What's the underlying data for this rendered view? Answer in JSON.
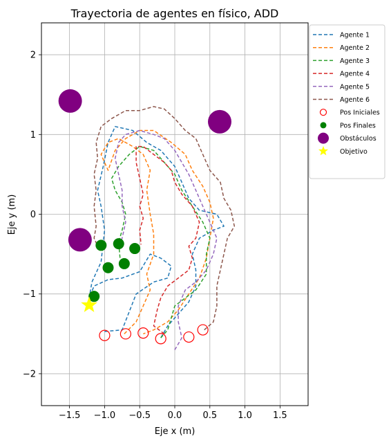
{
  "chart_data": {
    "type": "line",
    "title": "Trayectoria de agentes en físico, ADD",
    "xlabel": "Eje x (m)",
    "ylabel": "Eje y (m)",
    "xlim": [
      -1.9,
      1.9
    ],
    "ylim": [
      -2.4,
      2.4
    ],
    "xticks": [
      -1.5,
      -1.0,
      -0.5,
      0.0,
      0.5,
      1.0,
      1.5
    ],
    "xtick_labels": [
      "−1.5",
      "−1.0",
      "−0.5",
      "0.0",
      "0.5",
      "1.0",
      "1.5"
    ],
    "yticks": [
      -2,
      -1,
      0,
      1,
      2
    ],
    "ytick_labels": [
      "−2",
      "−1",
      "0",
      "1",
      "2"
    ],
    "grid": true,
    "legend_position": "outside-top-right",
    "series": [
      {
        "name": "Agente 1",
        "color": "#1f77b4",
        "style": "dashed",
        "points": [
          [
            -1.0,
            -1.47
          ],
          [
            -0.75,
            -1.45
          ],
          [
            -0.55,
            -1.0
          ],
          [
            -0.3,
            -0.85
          ],
          [
            -0.1,
            -0.8
          ],
          [
            -0.05,
            -0.65
          ],
          [
            -0.2,
            -0.55
          ],
          [
            -0.35,
            -0.5
          ],
          [
            -0.5,
            -0.72
          ],
          [
            -0.75,
            -0.8
          ],
          [
            -0.95,
            -0.82
          ],
          [
            -1.15,
            -0.9
          ],
          [
            -1.22,
            -1.05
          ],
          [
            -1.18,
            -0.85
          ],
          [
            -1.05,
            -0.6
          ],
          [
            -1.0,
            -0.2
          ],
          [
            -1.05,
            0.1
          ],
          [
            -1.1,
            0.3
          ],
          [
            -1.02,
            0.6
          ],
          [
            -0.95,
            0.9
          ],
          [
            -0.85,
            1.1
          ],
          [
            -0.6,
            1.05
          ],
          [
            -0.4,
            0.9
          ],
          [
            -0.2,
            0.8
          ],
          [
            0.0,
            0.6
          ],
          [
            0.1,
            0.4
          ],
          [
            0.2,
            0.2
          ],
          [
            0.35,
            0.05
          ],
          [
            0.6,
            0.0
          ],
          [
            0.7,
            -0.15
          ],
          [
            0.55,
            -0.2
          ],
          [
            0.35,
            -0.3
          ],
          [
            0.25,
            -0.5
          ],
          [
            0.3,
            -0.7
          ],
          [
            0.3,
            -0.9
          ],
          [
            0.2,
            -1.1
          ],
          [
            0.05,
            -1.25
          ],
          [
            -0.1,
            -1.4
          ],
          [
            -0.2,
            -1.55
          ]
        ]
      },
      {
        "name": "Agente 2",
        "color": "#ff7f0e",
        "style": "dashed",
        "points": [
          [
            -0.72,
            -1.5
          ],
          [
            -0.55,
            -1.35
          ],
          [
            -0.45,
            -1.15
          ],
          [
            -0.35,
            -0.95
          ],
          [
            -0.4,
            -0.75
          ],
          [
            -0.3,
            -0.5
          ],
          [
            -0.3,
            -0.25
          ],
          [
            -0.35,
            0.0
          ],
          [
            -0.4,
            0.3
          ],
          [
            -0.35,
            0.55
          ],
          [
            -0.45,
            0.75
          ],
          [
            -0.6,
            0.85
          ],
          [
            -0.8,
            0.95
          ],
          [
            -0.95,
            0.9
          ],
          [
            -1.05,
            0.75
          ],
          [
            -0.95,
            0.55
          ],
          [
            -0.85,
            0.8
          ],
          [
            -0.7,
            0.95
          ],
          [
            -0.5,
            1.05
          ],
          [
            -0.3,
            1.05
          ],
          [
            -0.05,
            0.9
          ],
          [
            0.15,
            0.75
          ],
          [
            0.25,
            0.55
          ],
          [
            0.4,
            0.35
          ],
          [
            0.5,
            0.15
          ],
          [
            0.55,
            -0.05
          ],
          [
            0.5,
            -0.3
          ],
          [
            0.45,
            -0.55
          ],
          [
            0.35,
            -0.8
          ],
          [
            0.2,
            -1.0
          ],
          [
            0.05,
            -1.2
          ],
          [
            -0.1,
            -1.35
          ],
          [
            -0.3,
            -1.45
          ],
          [
            -0.45,
            -1.5
          ]
        ]
      },
      {
        "name": "Agente 3",
        "color": "#2ca02c",
        "style": "dashed",
        "points": [
          [
            -0.2,
            -1.55
          ],
          [
            -0.1,
            -1.45
          ],
          [
            -0.05,
            -1.3
          ],
          [
            0.0,
            -1.15
          ],
          [
            0.15,
            -1.05
          ],
          [
            0.3,
            -0.95
          ],
          [
            0.45,
            -0.75
          ],
          [
            0.45,
            -0.5
          ],
          [
            0.5,
            -0.3
          ],
          [
            0.4,
            -0.1
          ],
          [
            0.25,
            0.1
          ],
          [
            0.1,
            0.3
          ],
          [
            0.0,
            0.5
          ],
          [
            -0.15,
            0.65
          ],
          [
            -0.3,
            0.8
          ],
          [
            -0.5,
            0.85
          ],
          [
            -0.65,
            0.75
          ],
          [
            -0.8,
            0.6
          ],
          [
            -0.9,
            0.45
          ],
          [
            -0.85,
            0.3
          ],
          [
            -0.75,
            0.15
          ],
          [
            -0.7,
            0.0
          ],
          [
            -0.75,
            -0.2
          ],
          [
            -0.8,
            -0.35
          ],
          [
            -0.78,
            -0.55
          ],
          [
            -0.72,
            -0.65
          ]
        ]
      },
      {
        "name": "Agente 4",
        "color": "#d62728",
        "style": "dashed",
        "points": [
          [
            -0.15,
            -1.5
          ],
          [
            -0.3,
            -1.4
          ],
          [
            -0.25,
            -1.2
          ],
          [
            -0.2,
            -1.05
          ],
          [
            -0.1,
            -0.9
          ],
          [
            0.05,
            -0.8
          ],
          [
            0.2,
            -0.7
          ],
          [
            0.25,
            -0.55
          ],
          [
            0.2,
            -0.4
          ],
          [
            0.3,
            -0.3
          ],
          [
            0.35,
            -0.1
          ],
          [
            0.25,
            0.1
          ],
          [
            0.1,
            0.25
          ],
          [
            0.0,
            0.4
          ],
          [
            -0.05,
            0.55
          ],
          [
            -0.15,
            0.65
          ],
          [
            -0.3,
            0.75
          ],
          [
            -0.45,
            0.85
          ],
          [
            -0.55,
            0.85
          ],
          [
            -0.55,
            0.65
          ],
          [
            -0.5,
            0.45
          ],
          [
            -0.45,
            0.25
          ],
          [
            -0.5,
            0.1
          ],
          [
            -0.45,
            -0.05
          ],
          [
            -0.5,
            -0.2
          ],
          [
            -0.48,
            -0.38
          ]
        ]
      },
      {
        "name": "Agente 5",
        "color": "#9467bd",
        "style": "dashed",
        "points": [
          [
            0.0,
            -1.7
          ],
          [
            0.1,
            -1.55
          ],
          [
            0.05,
            -1.35
          ],
          [
            0.05,
            -1.15
          ],
          [
            0.15,
            -0.95
          ],
          [
            0.3,
            -0.85
          ],
          [
            0.45,
            -0.7
          ],
          [
            0.55,
            -0.5
          ],
          [
            0.6,
            -0.3
          ],
          [
            0.5,
            -0.1
          ],
          [
            0.4,
            0.1
          ],
          [
            0.3,
            0.3
          ],
          [
            0.2,
            0.5
          ],
          [
            0.1,
            0.65
          ],
          [
            0.0,
            0.8
          ],
          [
            -0.15,
            0.95
          ],
          [
            -0.3,
            1.0
          ],
          [
            -0.5,
            1.05
          ],
          [
            -0.7,
            1.0
          ],
          [
            -0.8,
            0.9
          ],
          [
            -0.85,
            0.7
          ],
          [
            -0.8,
            0.5
          ],
          [
            -0.75,
            0.3
          ],
          [
            -0.75,
            0.1
          ],
          [
            -0.7,
            -0.1
          ],
          [
            -0.75,
            -0.3
          ],
          [
            -0.8,
            -0.4
          ]
        ]
      },
      {
        "name": "Agente 6",
        "color": "#8c564b",
        "style": "dashed",
        "points": [
          [
            0.42,
            -1.45
          ],
          [
            0.55,
            -1.35
          ],
          [
            0.6,
            -1.15
          ],
          [
            0.6,
            -0.9
          ],
          [
            0.65,
            -0.7
          ],
          [
            0.7,
            -0.5
          ],
          [
            0.75,
            -0.3
          ],
          [
            0.85,
            -0.15
          ],
          [
            0.8,
            0.05
          ],
          [
            0.7,
            0.2
          ],
          [
            0.65,
            0.4
          ],
          [
            0.5,
            0.55
          ],
          [
            0.4,
            0.75
          ],
          [
            0.3,
            0.95
          ],
          [
            0.15,
            1.05
          ],
          [
            0.0,
            1.2
          ],
          [
            -0.15,
            1.32
          ],
          [
            -0.3,
            1.35
          ],
          [
            -0.5,
            1.3
          ],
          [
            -0.7,
            1.3
          ],
          [
            -0.9,
            1.2
          ],
          [
            -1.05,
            1.1
          ],
          [
            -1.12,
            0.9
          ],
          [
            -1.1,
            0.7
          ],
          [
            -1.15,
            0.5
          ],
          [
            -1.12,
            0.3
          ],
          [
            -1.15,
            0.1
          ],
          [
            -1.12,
            -0.15
          ],
          [
            -1.15,
            -0.3
          ],
          [
            -1.1,
            -0.4
          ]
        ]
      }
    ],
    "initial_positions": {
      "name": "Pos Iniciales",
      "color": "#ff0000",
      "points": [
        [
          -1.0,
          -1.52
        ],
        [
          -0.7,
          -1.5
        ],
        [
          -0.45,
          -1.49
        ],
        [
          -0.2,
          -1.56
        ],
        [
          0.2,
          -1.54
        ],
        [
          0.4,
          -1.45
        ]
      ]
    },
    "final_positions": {
      "name": "Pos Finales",
      "color": "#008000",
      "points": [
        [
          -1.15,
          -1.03
        ],
        [
          -0.95,
          -0.67
        ],
        [
          -1.05,
          -0.39
        ],
        [
          -0.8,
          -0.37
        ],
        [
          -0.72,
          -0.62
        ],
        [
          -0.57,
          -0.43
        ]
      ]
    },
    "obstacles": {
      "name": "Obstáculos",
      "color": "#800080",
      "points": [
        [
          -1.49,
          1.42
        ],
        [
          0.64,
          1.16
        ],
        [
          -1.35,
          -0.32
        ]
      ]
    },
    "objective": {
      "name": "Objetivo",
      "color": "#ffff00",
      "points": [
        [
          -1.22,
          -1.14
        ]
      ]
    }
  }
}
